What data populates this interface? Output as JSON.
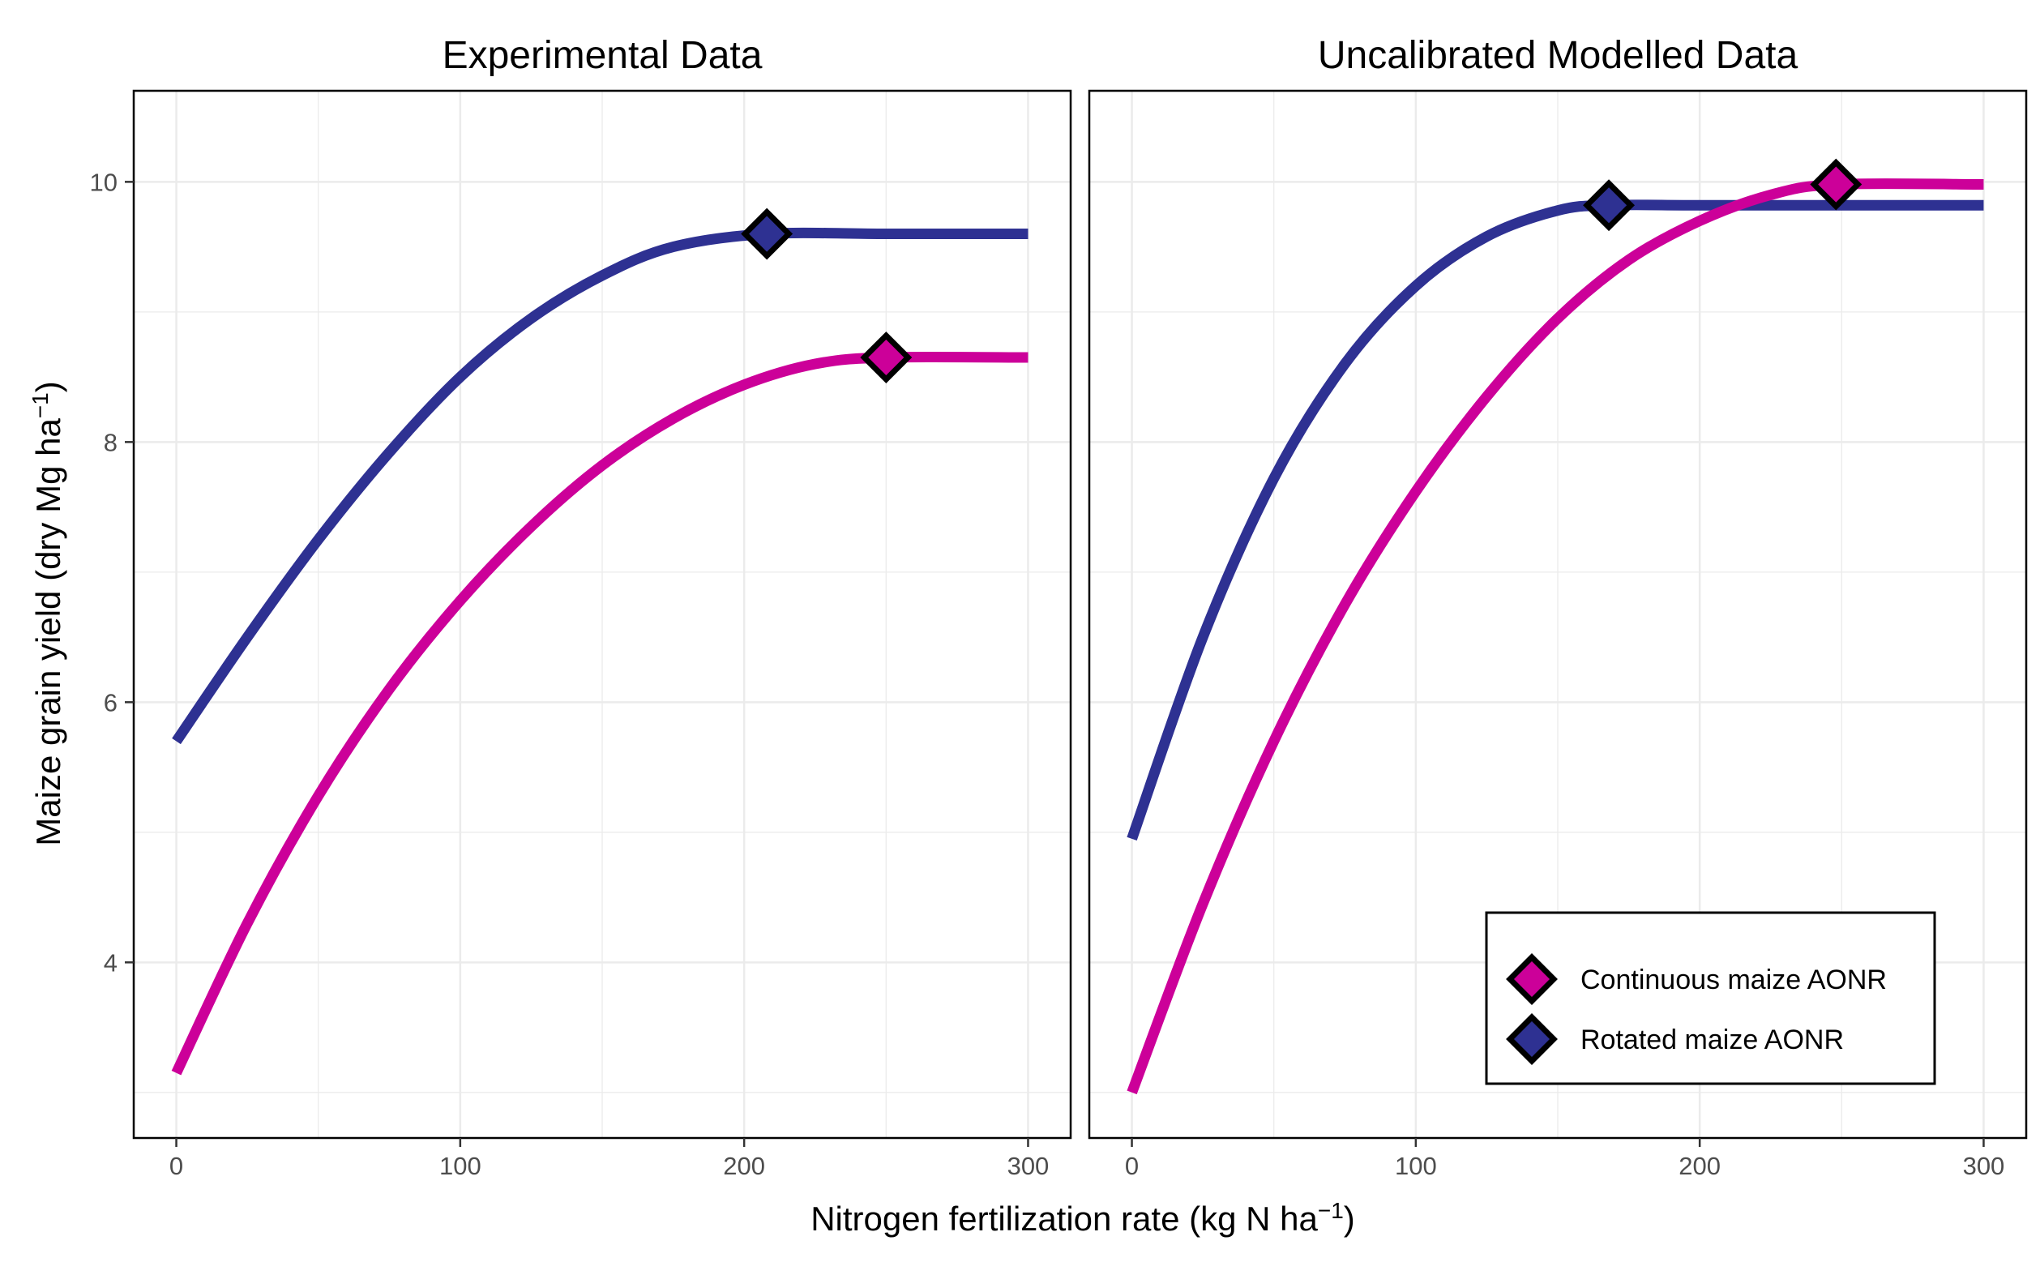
{
  "chart_data": {
    "type": "line",
    "x_axis": {
      "label_main": "Nitrogen fertilization rate (kg N ha",
      "label_sup": "−1",
      "label_close": ")",
      "range": [
        -15,
        315
      ],
      "ticks": [
        0,
        100,
        200,
        300
      ],
      "tick_labels": [
        "0",
        "100",
        "200",
        "300"
      ]
    },
    "y_axis": {
      "label_main": "Maize grain yield (dry Mg ha",
      "label_sup": "−1",
      "label_close": ")",
      "range": [
        2.65,
        10.7
      ],
      "ticks": [
        4,
        6,
        8,
        10
      ],
      "tick_labels": [
        "4",
        "6",
        "8",
        "10"
      ],
      "minor_gridlines": [
        3,
        5,
        7,
        9
      ]
    },
    "grid": true,
    "legend_position": "bottom-right inside right panel",
    "colors": {
      "continuous": "#CC0099",
      "rotated": "#2E3192",
      "marker_border": "#000000",
      "gridline": "#EBEBEB",
      "panel_border": "#000000"
    },
    "legend": [
      {
        "label": "Continuous maize AONR",
        "series": "continuous"
      },
      {
        "label": "Rotated maize AONR",
        "series": "rotated"
      }
    ],
    "panels": [
      {
        "title": "Experimental Data",
        "series": [
          {
            "key": "rotated",
            "x": [
              0,
              25,
              50,
              75,
              100,
              125,
              150,
              175,
              208,
              250,
              300
            ],
            "y": [
              5.7,
              6.5,
              7.25,
              7.92,
              8.5,
              8.95,
              9.28,
              9.5,
              9.6,
              9.6,
              9.6
            ]
          },
          {
            "key": "continuous",
            "x": [
              0,
              25,
              50,
              75,
              100,
              125,
              150,
              175,
              200,
              225,
              250,
              300
            ],
            "y": [
              3.15,
              4.3,
              5.28,
              6.1,
              6.78,
              7.35,
              7.82,
              8.18,
              8.44,
              8.6,
              8.65,
              8.65
            ]
          }
        ],
        "aonr": [
          {
            "key": "rotated",
            "x": 208,
            "y": 9.6
          },
          {
            "key": "continuous",
            "x": 250,
            "y": 8.65
          }
        ]
      },
      {
        "title": "Uncalibrated Modelled Data",
        "series": [
          {
            "key": "rotated",
            "x": [
              0,
              25,
              50,
              75,
              100,
              125,
              150,
              168,
              200,
              250,
              300
            ],
            "y": [
              4.95,
              6.5,
              7.72,
              8.6,
              9.2,
              9.58,
              9.78,
              9.82,
              9.82,
              9.82,
              9.82
            ]
          },
          {
            "key": "continuous",
            "x": [
              0,
              25,
              50,
              75,
              100,
              125,
              150,
              175,
              200,
              225,
              248,
              300
            ],
            "y": [
              3.0,
              4.45,
              5.7,
              6.75,
              7.62,
              8.35,
              8.95,
              9.4,
              9.7,
              9.9,
              9.98,
              9.98
            ]
          }
        ],
        "aonr": [
          {
            "key": "rotated",
            "x": 168,
            "y": 9.82
          },
          {
            "key": "continuous",
            "x": 248,
            "y": 9.98
          }
        ]
      }
    ]
  }
}
